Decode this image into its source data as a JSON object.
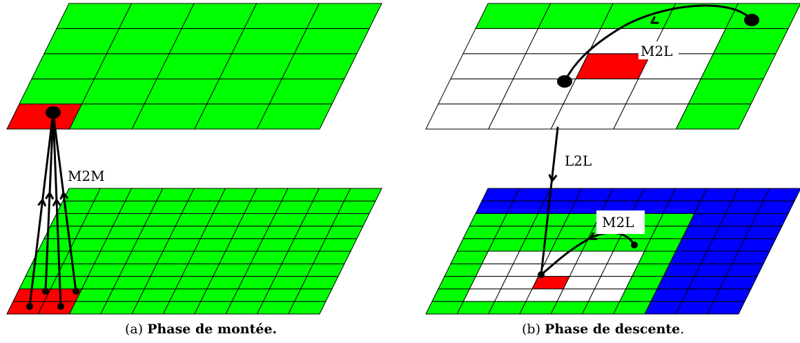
{
  "panel_a": {
    "label_m2m": "M2M",
    "caption_prefix": "(a)",
    "caption_bold": "Phase de montée.",
    "caption_suffix": ""
  },
  "panel_b": {
    "label_m2l_top": "M2L",
    "label_l2l": "L2L",
    "label_m2l_bottom": "M2L",
    "caption_prefix": "(b)",
    "caption_bold": "Phase de descente",
    "caption_suffix": "."
  },
  "colors": {
    "green": "#00ff00",
    "red": "#ff0000",
    "blue": "#0000ff",
    "white": "#ffffff"
  }
}
